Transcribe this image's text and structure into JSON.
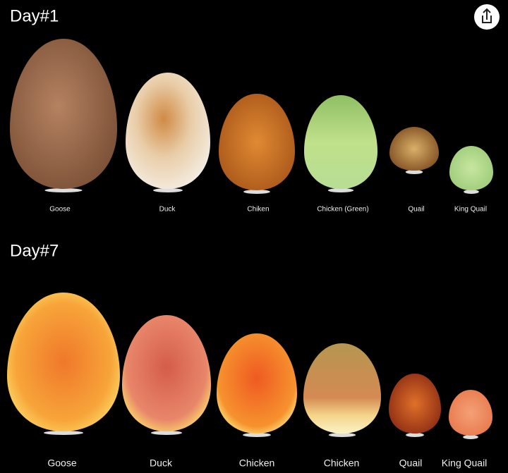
{
  "sections": [
    {
      "title": "Day#1",
      "labels": [
        "Goose",
        "Duck",
        "Chiken",
        "Chicken (Green)",
        "Quail",
        "King Quail"
      ]
    },
    {
      "title": "Day#7",
      "labels": [
        "Goose",
        "Duck",
        "Chicken",
        "Chicken",
        "Quail",
        "King Quail"
      ]
    }
  ]
}
